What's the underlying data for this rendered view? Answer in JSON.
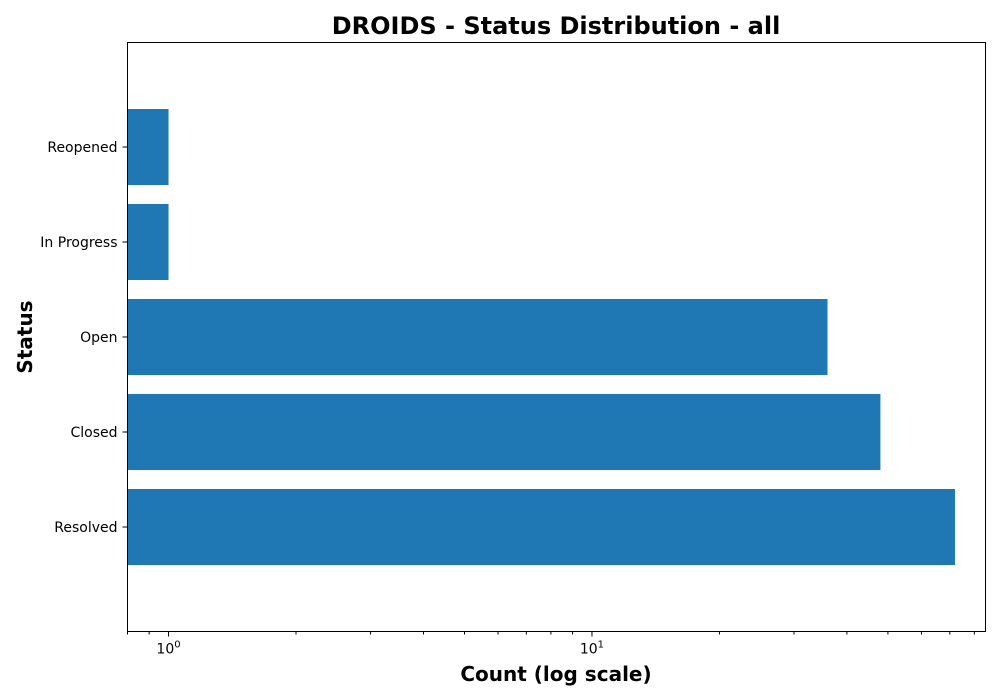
{
  "chart_data": {
    "type": "bar",
    "orientation": "horizontal",
    "title": "DROIDS - Status Distribution - all",
    "xlabel": "Count (log scale)",
    "ylabel": "Status",
    "x_scale": "log",
    "xlim": [
      0.8,
      85
    ],
    "categories": [
      "Resolved",
      "Closed",
      "Open",
      "In Progress",
      "Reopened"
    ],
    "values": [
      72,
      48,
      36,
      1,
      1
    ],
    "x_major_ticks": [
      {
        "base": "10",
        "exponent": "0",
        "value": 1
      },
      {
        "base": "10",
        "exponent": "1",
        "value": 10
      }
    ],
    "grid": false,
    "bar_color": "#1f77b4"
  }
}
